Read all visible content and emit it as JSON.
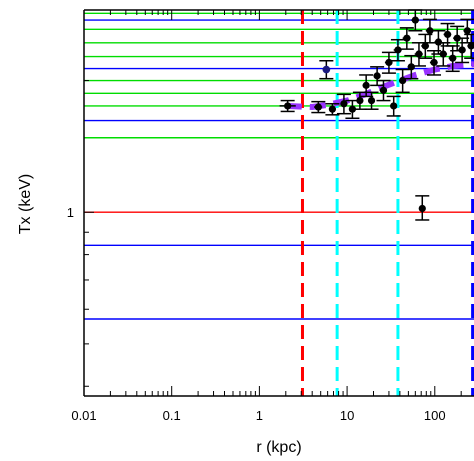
{
  "chart_data": {
    "type": "scatter",
    "xlabel": "r (kpc)",
    "ylabel": "Tx (keV)",
    "x_scale": "log",
    "y_scale": "log",
    "xlim": [
      0.01,
      280
    ],
    "ylim": [
      0.38,
      2.9
    ],
    "x_ticks": [
      {
        "value": 0.01,
        "label": "0.01"
      },
      {
        "value": 0.1,
        "label": "0.1"
      },
      {
        "value": 1,
        "label": "1"
      },
      {
        "value": 10,
        "label": "10"
      },
      {
        "value": 100,
        "label": "100"
      }
    ],
    "y_ticks": [
      {
        "value": 1,
        "label": "1"
      }
    ],
    "hlines": [
      {
        "y": 2.85,
        "color": "#00dd00"
      },
      {
        "y": 2.75,
        "color": "#0000ff"
      },
      {
        "y": 2.62,
        "color": "#00dd00"
      },
      {
        "y": 2.44,
        "color": "#00dd00"
      },
      {
        "y": 2.27,
        "color": "#00dd00"
      },
      {
        "y": 2.13,
        "color": "#0000ff"
      },
      {
        "y": 2.0,
        "color": "#00dd00"
      },
      {
        "y": 1.87,
        "color": "#00dd00"
      },
      {
        "y": 1.75,
        "color": "#00dd00"
      },
      {
        "y": 1.62,
        "color": "#0000ff"
      },
      {
        "y": 1.48,
        "color": "#00dd00"
      },
      {
        "y": 1.0,
        "color": "#ff0000"
      },
      {
        "y": 0.84,
        "color": "#0000ff"
      },
      {
        "y": 0.57,
        "color": "#0000ff"
      }
    ],
    "vlines": [
      {
        "x": 3.1,
        "color": "#ff0000"
      },
      {
        "x": 7.7,
        "color": "#00ffff"
      },
      {
        "x": 38,
        "color": "#00ffff"
      },
      {
        "x": 270,
        "color": "#0000ff"
      }
    ],
    "points": [
      {
        "x": 2.1,
        "y": 1.75,
        "xerr": [
          1.7,
          2.6
        ],
        "yerr": [
          1.7,
          1.8
        ]
      },
      {
        "x": 4.7,
        "y": 1.74,
        "xerr": [
          4.2,
          5.2
        ],
        "yerr": [
          1.69,
          1.79
        ]
      },
      {
        "x": 5.8,
        "y": 2.12,
        "xerr": [
          5.3,
          6.4
        ],
        "yerr": [
          2.02,
          2.22
        ]
      },
      {
        "x": 6.8,
        "y": 1.72,
        "xerr": [
          6.3,
          7.3
        ],
        "yerr": [
          1.67,
          1.77
        ]
      },
      {
        "x": 9.2,
        "y": 1.77,
        "xerr": [
          8.4,
          10
        ],
        "yerr": [
          1.68,
          1.86
        ]
      },
      {
        "x": 11.5,
        "y": 1.72,
        "xerr": [
          10.5,
          12.5
        ],
        "yerr": [
          1.64,
          1.8
        ]
      },
      {
        "x": 14,
        "y": 1.8,
        "xerr": [
          12.8,
          15.2
        ],
        "yerr": [
          1.72,
          1.88
        ]
      },
      {
        "x": 16.5,
        "y": 1.95,
        "xerr": [
          15,
          18
        ],
        "yerr": [
          1.84,
          2.06
        ]
      },
      {
        "x": 19,
        "y": 1.8,
        "xerr": [
          17.4,
          20.6
        ],
        "yerr": [
          1.72,
          1.88
        ]
      },
      {
        "x": 22,
        "y": 2.05,
        "xerr": [
          20,
          24
        ],
        "yerr": [
          1.95,
          2.15
        ]
      },
      {
        "x": 26,
        "y": 1.9,
        "xerr": [
          23.5,
          28.5
        ],
        "yerr": [
          1.8,
          2.0
        ]
      },
      {
        "x": 30,
        "y": 2.2,
        "xerr": [
          27,
          33
        ],
        "yerr": [
          2.08,
          2.32
        ]
      },
      {
        "x": 34,
        "y": 1.75,
        "xerr": [
          31,
          37
        ],
        "yerr": [
          1.66,
          1.84
        ]
      },
      {
        "x": 38,
        "y": 2.35,
        "xerr": [
          34,
          42
        ],
        "yerr": [
          2.22,
          2.48
        ]
      },
      {
        "x": 43,
        "y": 2.0,
        "xerr": [
          39,
          47
        ],
        "yerr": [
          1.88,
          2.12
        ]
      },
      {
        "x": 48,
        "y": 2.5,
        "xerr": [
          43,
          53
        ],
        "yerr": [
          2.36,
          2.64
        ]
      },
      {
        "x": 54,
        "y": 2.15,
        "xerr": [
          49,
          59
        ],
        "yerr": [
          2.02,
          2.28
        ]
      },
      {
        "x": 60,
        "y": 2.75,
        "xerr": [
          54,
          66
        ],
        "yerr": [
          2.6,
          2.9
        ]
      },
      {
        "x": 66,
        "y": 2.3,
        "xerr": [
          59,
          73
        ],
        "yerr": [
          2.16,
          2.44
        ]
      },
      {
        "x": 72,
        "y": 1.02,
        "xerr": [
          66,
          78
        ],
        "yerr": [
          0.96,
          1.09
        ]
      },
      {
        "x": 78,
        "y": 2.4,
        "xerr": [
          70,
          86
        ],
        "yerr": [
          2.25,
          2.55
        ]
      },
      {
        "x": 88,
        "y": 2.6,
        "xerr": [
          79,
          97
        ],
        "yerr": [
          2.44,
          2.76
        ]
      },
      {
        "x": 98,
        "y": 2.2,
        "xerr": [
          88,
          108
        ],
        "yerr": [
          2.06,
          2.34
        ]
      },
      {
        "x": 110,
        "y": 2.45,
        "xerr": [
          99,
          121
        ],
        "yerr": [
          2.3,
          2.6
        ]
      },
      {
        "x": 125,
        "y": 2.3,
        "xerr": [
          112,
          138
        ],
        "yerr": [
          2.16,
          2.44
        ]
      },
      {
        "x": 140,
        "y": 2.55,
        "xerr": [
          126,
          154
        ],
        "yerr": [
          2.4,
          2.7
        ]
      },
      {
        "x": 160,
        "y": 2.25,
        "xerr": [
          144,
          176
        ],
        "yerr": [
          2.1,
          2.4
        ]
      },
      {
        "x": 180,
        "y": 2.5,
        "xerr": [
          162,
          198
        ],
        "yerr": [
          2.34,
          2.66
        ]
      },
      {
        "x": 205,
        "y": 2.35,
        "xerr": [
          185,
          225
        ],
        "yerr": [
          2.2,
          2.5
        ]
      },
      {
        "x": 235,
        "y": 2.6,
        "xerr": [
          212,
          258
        ],
        "yerr": [
          2.44,
          2.76
        ]
      },
      {
        "x": 260,
        "y": 2.4,
        "xerr": [
          235,
          280
        ],
        "yerr": [
          2.25,
          2.55
        ]
      }
    ],
    "highlighted_point": {
      "x": 5.8,
      "y": 2.12,
      "color": "#1a1a80"
    },
    "model_curve": {
      "color": "#9933ff",
      "style": "dashed",
      "x": [
        2,
        4,
        6,
        10,
        16,
        25,
        40,
        60,
        100,
        160,
        280
      ],
      "y": [
        1.75,
        1.74,
        1.76,
        1.8,
        1.86,
        1.93,
        2.0,
        2.06,
        2.12,
        2.16,
        2.18
      ]
    }
  }
}
